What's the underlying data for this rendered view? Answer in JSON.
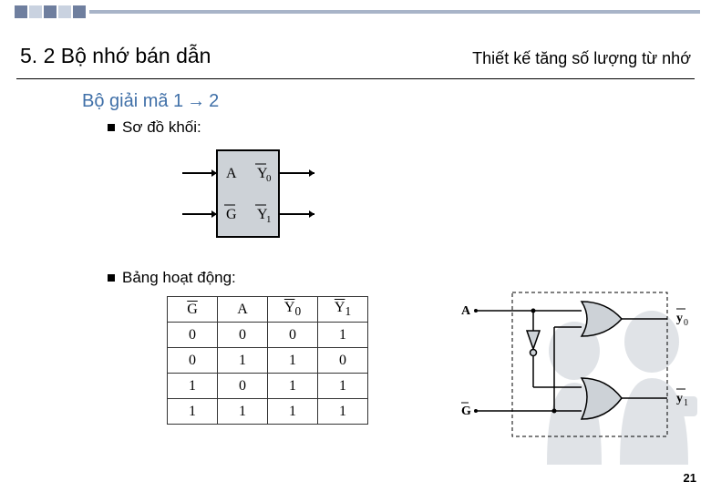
{
  "header": {
    "left": "5. 2 Bộ nhớ bán dẫn",
    "right": "Thiết kế tăng số lượng từ nhớ"
  },
  "section_title_prefix": "Bộ giải mã 1",
  "section_title_suffix": "2",
  "bullets": {
    "b1": "Sơ đồ khối:",
    "b2": "Bảng hoạt động:"
  },
  "block_diagram": {
    "in_top": "A",
    "in_bot": "G",
    "out_top": "Y",
    "out_top_sub": "0",
    "out_bot": "Y",
    "out_bot_sub": "1",
    "fill": "#cdd2d7",
    "stroke": "#000000"
  },
  "truth_table": {
    "headers": [
      "G",
      "A",
      "Y0",
      "Y1"
    ],
    "header_overline": [
      true,
      false,
      true,
      true
    ],
    "rows": [
      [
        "0",
        "0",
        "0",
        "1"
      ],
      [
        "0",
        "1",
        "1",
        "0"
      ],
      [
        "1",
        "0",
        "1",
        "1"
      ],
      [
        "1",
        "1",
        "1",
        "1"
      ]
    ]
  },
  "logic": {
    "A": "A",
    "G": "G",
    "y0": "y",
    "y0sub": "0",
    "y1": "y",
    "y1sub": "1",
    "gate_fill": "#cdd2d7",
    "gate_stroke": "#000000",
    "wire": "#000000",
    "dash": "4 3"
  },
  "deco": {
    "sq_color": "#6f7f9f",
    "sq_light": "#c9d2e0",
    "bar_color": "#a8b4c8"
  },
  "page_number": "21"
}
